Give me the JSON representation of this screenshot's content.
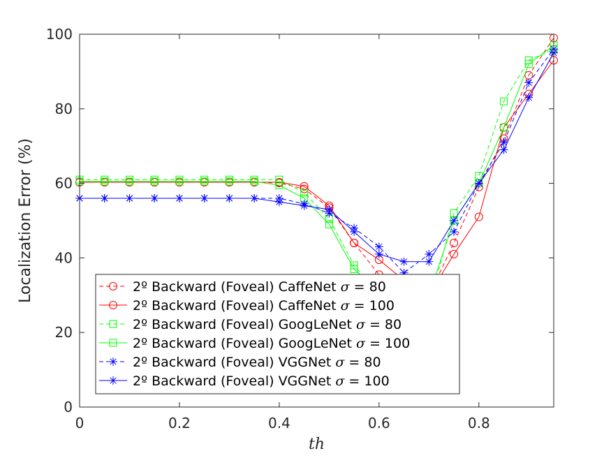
{
  "chart_data": {
    "type": "line",
    "xlabel": "th",
    "ylabel": "Localization Error (%)",
    "xlim": [
      0,
      0.95
    ],
    "ylim": [
      0,
      100
    ],
    "xticks": [
      "0",
      "0.2",
      "0.4",
      "0.6",
      "0.8"
    ],
    "xtick_values": [
      0,
      0.2,
      0.4,
      0.6,
      0.8
    ],
    "yticks": [
      "0",
      "20",
      "40",
      "60",
      "80",
      "100"
    ],
    "ytick_values": [
      0,
      20,
      40,
      60,
      80,
      100
    ],
    "grid": false,
    "legend_position": "bottom-left",
    "x": [
      0,
      0.05,
      0.1,
      0.15,
      0.2,
      0.25,
      0.3,
      0.35,
      0.4,
      0.45,
      0.5,
      0.55,
      0.6,
      0.65,
      0.7,
      0.75,
      0.8,
      0.85,
      0.9,
      0.95
    ],
    "series": [
      {
        "name": "2º Backward (Foveal) CaffeNet",
        "sigma_label": "σ",
        "sigma_value": "= 80",
        "color": "#ff0000",
        "dash": "dashed",
        "marker": "circle",
        "values": [
          60.3,
          60.3,
          60.3,
          60.3,
          60.3,
          60.3,
          60.3,
          60.3,
          60.1,
          58.5,
          53.5,
          44,
          35.5,
          34,
          30,
          44,
          59,
          72,
          89,
          99
        ]
      },
      {
        "name": "2º Backward (Foveal) CaffeNet",
        "sigma_label": "σ",
        "sigma_value": "= 100",
        "color": "#ff0000",
        "dash": "solid",
        "marker": "circle",
        "values": [
          60.3,
          60.3,
          60.3,
          60.3,
          60.3,
          60.3,
          60.3,
          60.3,
          60.3,
          59.2,
          54,
          44,
          39.5,
          34,
          30,
          41,
          51,
          75,
          84,
          93
        ]
      },
      {
        "name": "2º Backward (Foveal) GoogLeNet",
        "sigma_label": "σ",
        "sigma_value": "= 80",
        "color": "#00ff00",
        "dash": "dashed",
        "marker": "square",
        "values": [
          61,
          61,
          61,
          61,
          61,
          61,
          61,
          61,
          61,
          57.5,
          50.5,
          38,
          30,
          26,
          27,
          52,
          62,
          82,
          93,
          96
        ]
      },
      {
        "name": "2º Backward (Foveal) GoogLeNet",
        "sigma_label": "σ",
        "sigma_value": "= 100",
        "color": "#00ff00",
        "dash": "solid",
        "marker": "square",
        "values": [
          60.5,
          60.5,
          60.5,
          60.5,
          60.5,
          60.5,
          60.5,
          60.5,
          59.5,
          56,
          49,
          37,
          31,
          26,
          30,
          50,
          60,
          75,
          92,
          97
        ]
      },
      {
        "name": "2º Backward (Foveal) VGGNet",
        "sigma_label": "σ",
        "sigma_value": "= 80",
        "color": "#0000ff",
        "dash": "dashed",
        "marker": "star",
        "values": [
          56,
          56,
          56,
          56,
          56,
          56,
          56,
          56,
          56,
          54.5,
          52,
          48,
          43,
          36,
          41,
          47,
          60,
          71,
          87,
          96
        ]
      },
      {
        "name": "2º Backward (Foveal) VGGNet",
        "sigma_label": "σ",
        "sigma_value": "= 100",
        "color": "#0000ff",
        "dash": "solid",
        "marker": "star",
        "values": [
          56,
          56,
          56,
          56,
          56,
          56,
          56,
          56,
          55,
          54,
          53,
          47,
          41,
          39,
          39,
          50,
          60,
          69,
          83,
          95
        ]
      }
    ]
  }
}
